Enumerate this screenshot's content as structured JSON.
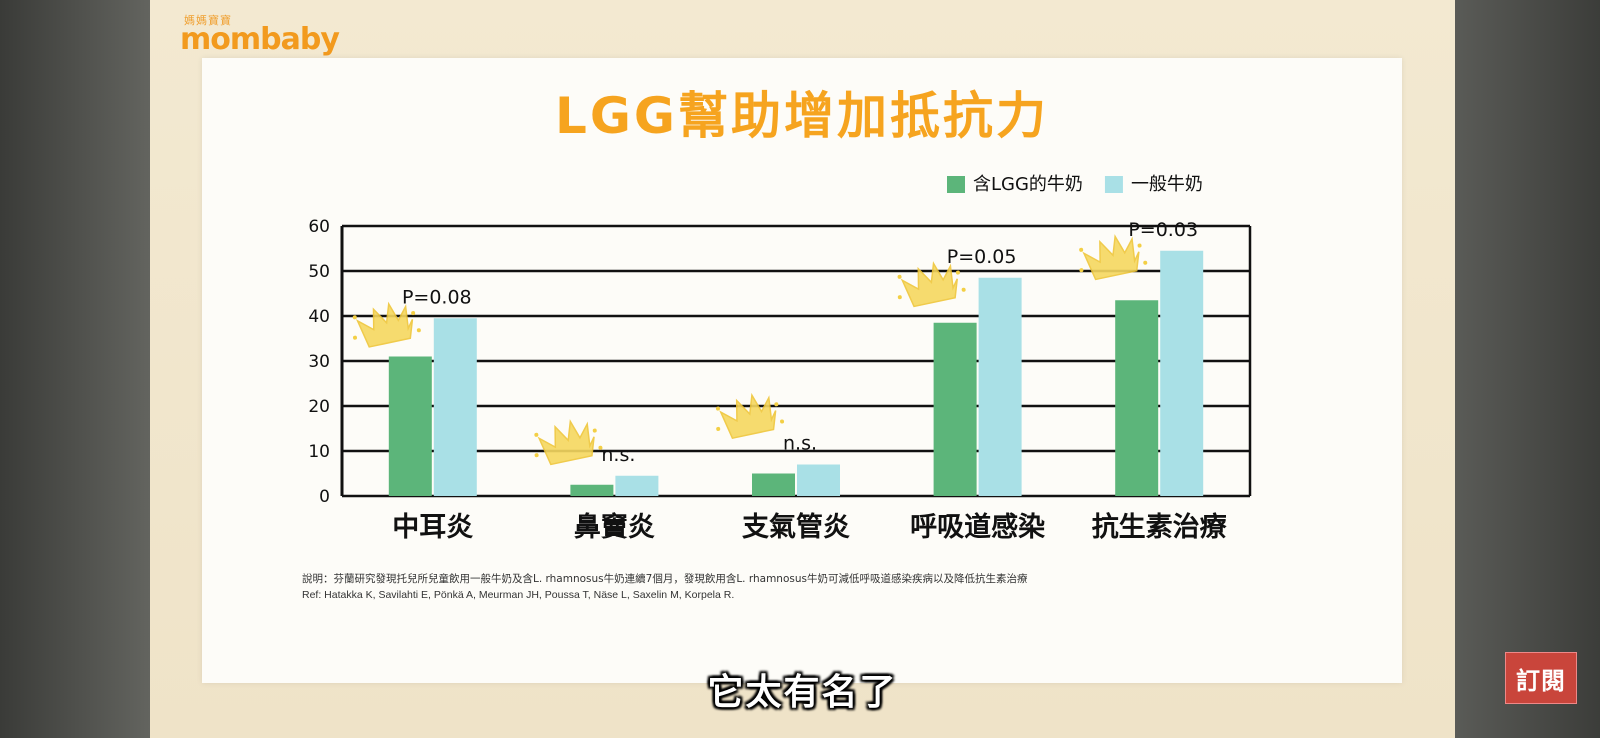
{
  "logo": {
    "small": "媽媽寶寶",
    "main": "mombaby"
  },
  "subtitle": "它太有名了",
  "subscribe_label": "訂閱",
  "note": "說明：芬蘭研究發現托兒所兒童飲用一般牛奶及含L. rhamnosus牛奶連續7個月，發現飲用含L. rhamnosus牛奶可減低呼吸道感染疾病以及降低抗生素治療",
  "ref": "Ref: Hatakka K, Savilahti E, Pönkä A, Meurman JH, Poussa T, Näse L, Saxelin M, Korpela R.",
  "colors": {
    "title": "#f6a41f",
    "lgg": "#5cb57a",
    "regular": "#a9e0e6",
    "accent": "#f29a1e",
    "subscribe": "#c9453b"
  },
  "chart_data": {
    "type": "bar",
    "title": "LGG幫助增加抵抗力",
    "categories": [
      "中耳炎",
      "鼻竇炎",
      "支氣管炎",
      "呼吸道感染",
      "抗生素治療"
    ],
    "series": [
      {
        "name": "含LGG的牛奶",
        "values": [
          31,
          2.5,
          5,
          38.5,
          43.5
        ],
        "color": "#5cb57a"
      },
      {
        "name": "一般牛奶",
        "values": [
          39.5,
          4.5,
          7,
          48.5,
          54.5
        ],
        "color": "#a9e0e6"
      }
    ],
    "annotations": [
      "P=0.08",
      "n.s.",
      "n.s.",
      "P=0.05",
      "P=0.03"
    ],
    "ylim": [
      0,
      60
    ],
    "yticks": [
      0,
      10,
      20,
      30,
      40,
      50,
      60
    ],
    "grid": true,
    "legend": "top-right",
    "decorations": "crown-icon"
  }
}
